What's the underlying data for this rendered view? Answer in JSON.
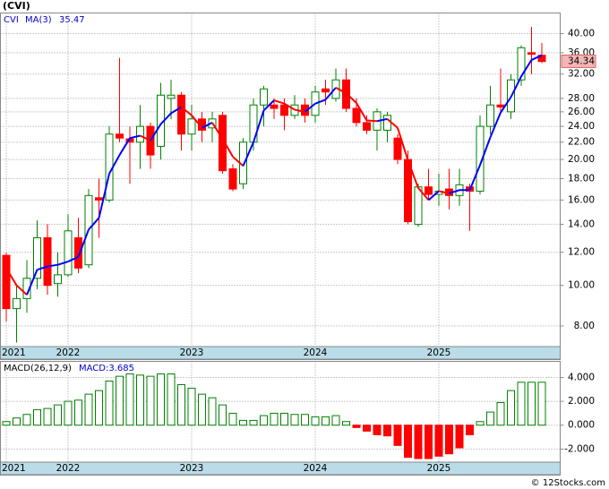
{
  "chart_data": [
    {
      "type": "candlestick",
      "title": "(CVI)",
      "name": "CVI",
      "categories": [
        "2021",
        null,
        null,
        null,
        null,
        null,
        "2022",
        null,
        null,
        null,
        null,
        null,
        null,
        null,
        null,
        null,
        null,
        null,
        "2023",
        null,
        null,
        null,
        null,
        null,
        null,
        null,
        null,
        null,
        null,
        null,
        "2024",
        null,
        null,
        null,
        null,
        null,
        null,
        null,
        null,
        null,
        null,
        null,
        "2025",
        null,
        null,
        null,
        null,
        null,
        null,
        null,
        null,
        null,
        null
      ],
      "open": [
        11.8,
        8.8,
        9.3,
        10.4,
        13,
        10.1,
        10.6,
        13,
        11.2,
        16.2,
        16,
        23,
        22.4,
        22,
        24,
        21.5,
        28,
        28.5,
        23,
        25,
        23.8,
        25.5,
        19,
        17.5,
        22,
        27,
        27,
        27,
        25.5,
        27,
        25.5,
        29.5,
        28,
        31,
        26.5,
        24.5,
        23.5,
        23.5,
        22.5,
        20,
        14,
        17.2,
        16.5,
        17,
        16.4,
        17.2,
        16.8,
        24,
        27,
        26,
        31,
        36,
        35.5
      ],
      "high": [
        12,
        10,
        11.5,
        14.3,
        14,
        12,
        14.8,
        14.5,
        17,
        18,
        24,
        35,
        24,
        27,
        24.5,
        30.5,
        31,
        29,
        27,
        26,
        26,
        26,
        19.5,
        22.5,
        28,
        30,
        28,
        28,
        28.5,
        28,
        30,
        31,
        33,
        33,
        28,
        25.5,
        26.5,
        26,
        23,
        21,
        17.5,
        19,
        18.5,
        19,
        19,
        17.5,
        25.5,
        30,
        33,
        32,
        37.5,
        41.5,
        38
      ],
      "low": [
        8.2,
        7.3,
        8.6,
        9.8,
        9.5,
        9.4,
        10.5,
        10.7,
        11,
        13,
        15.8,
        22,
        17.5,
        19,
        19,
        20,
        25,
        21,
        21,
        22,
        22,
        18.5,
        16.8,
        17,
        21,
        24,
        25,
        23.5,
        25,
        24.5,
        24.5,
        27,
        27.5,
        26,
        24,
        23,
        21,
        22,
        19.5,
        14,
        13.8,
        16,
        15.5,
        15.2,
        15.5,
        13.5,
        16.5,
        23,
        26,
        25,
        30,
        32,
        34
      ],
      "close": [
        8.8,
        9.3,
        10.4,
        13,
        10,
        10.6,
        13.5,
        11,
        16.4,
        16,
        23,
        22.5,
        22,
        24,
        20.5,
        28.5,
        28.5,
        23,
        25,
        23.5,
        25,
        18.8,
        17,
        22,
        27,
        29.5,
        26.5,
        25.5,
        27,
        25.5,
        29,
        29,
        31,
        26.5,
        24.5,
        23.5,
        26,
        25.5,
        20,
        14.2,
        17.2,
        16.5,
        16.8,
        16.4,
        17.4,
        16.8,
        24,
        27,
        26.7,
        31,
        37,
        35.7,
        34.3
      ],
      "up_color": "#008000",
      "down_color": "#ff0000",
      "series": [
        {
          "name": "MA(3)",
          "last": 35.47,
          "up_color": "#0000ff",
          "down_color": "#ff0000",
          "values": [
            11,
            10,
            9.5,
            10.9,
            11.1,
            11.2,
            11.4,
            11.7,
            13.6,
            14.5,
            18.5,
            20.5,
            22.5,
            22.8,
            22.2,
            24.3,
            25.8,
            26.7,
            25.5,
            23.8,
            24.5,
            22.4,
            20.3,
            19.3,
            22,
            26.2,
            27.7,
            27.2,
            26.3,
            26,
            27.2,
            27.8,
            29.7,
            28.8,
            27.3,
            24.8,
            24.7,
            25,
            23.8,
            19.9,
            17.1,
            16,
            16.8,
            16.6,
            16.9,
            16.9,
            19.4,
            22.6,
            25.9,
            28.2,
            31.6,
            34.6,
            35.5
          ]
        }
      ],
      "last_price": 34.34,
      "log_scale": true,
      "grid": true,
      "ylim": [
        7.14,
        44.8
      ],
      "yticks": [
        {
          "value": 8,
          "label": "8.00"
        },
        {
          "value": 10,
          "label": "10.00"
        },
        {
          "value": 12,
          "label": "12.00"
        },
        {
          "value": 14,
          "label": "14.00"
        },
        {
          "value": 16,
          "label": "16.00"
        },
        {
          "value": 18,
          "label": "18.00"
        },
        {
          "value": 20,
          "label": "20.00"
        },
        {
          "value": 22,
          "label": "22.00"
        },
        {
          "value": 24,
          "label": "24.00"
        },
        {
          "value": 26,
          "label": "26.00"
        },
        {
          "value": 28,
          "label": "28.00"
        },
        {
          "value": 32,
          "label": "32.00"
        },
        {
          "value": 36,
          "label": "36.00"
        },
        {
          "value": 40,
          "label": "40.00"
        }
      ]
    },
    {
      "type": "bar",
      "name": "MACD(26,12,9)",
      "legend_value": "MACD:3.685",
      "categories": [
        "2021",
        null,
        null,
        null,
        null,
        null,
        "2022",
        null,
        null,
        null,
        null,
        null,
        null,
        null,
        null,
        null,
        null,
        null,
        "2023",
        null,
        null,
        null,
        null,
        null,
        null,
        null,
        null,
        null,
        null,
        null,
        "2024",
        null,
        null,
        null,
        null,
        null,
        null,
        null,
        null,
        null,
        null,
        null,
        "2025",
        null,
        null,
        null,
        null,
        null,
        null,
        null,
        null,
        null,
        null
      ],
      "values": [
        0.3,
        0.6,
        0.9,
        1.3,
        1.4,
        1.7,
        2.0,
        2.1,
        2.6,
        2.9,
        3.7,
        4.1,
        4.3,
        4.2,
        4.1,
        4.3,
        4.3,
        3.4,
        3.1,
        2.6,
        2.3,
        1.7,
        1.0,
        0.4,
        0.4,
        0.8,
        1.0,
        1.0,
        0.9,
        0.9,
        0.7,
        0.7,
        0.8,
        0.3,
        -0.2,
        -0.5,
        -0.8,
        -0.9,
        -1.7,
        -2.7,
        -2.8,
        -2.8,
        -2.6,
        -2.4,
        -1.9,
        -0.8,
        0.3,
        1.1,
        1.9,
        2.9,
        3.6,
        3.6,
        3.6
      ],
      "pos_color": "#008000",
      "neg_color": "#ff0000",
      "ylim": [
        -3.1,
        5.35
      ],
      "grid": true,
      "yticks": [
        {
          "value": -2,
          "label": "-2.000"
        },
        {
          "value": 0,
          "label": "0.000"
        },
        {
          "value": 2,
          "label": "2.000"
        },
        {
          "value": 4,
          "label": "4.000"
        }
      ]
    }
  ],
  "footer": "© 12Stocks.com"
}
